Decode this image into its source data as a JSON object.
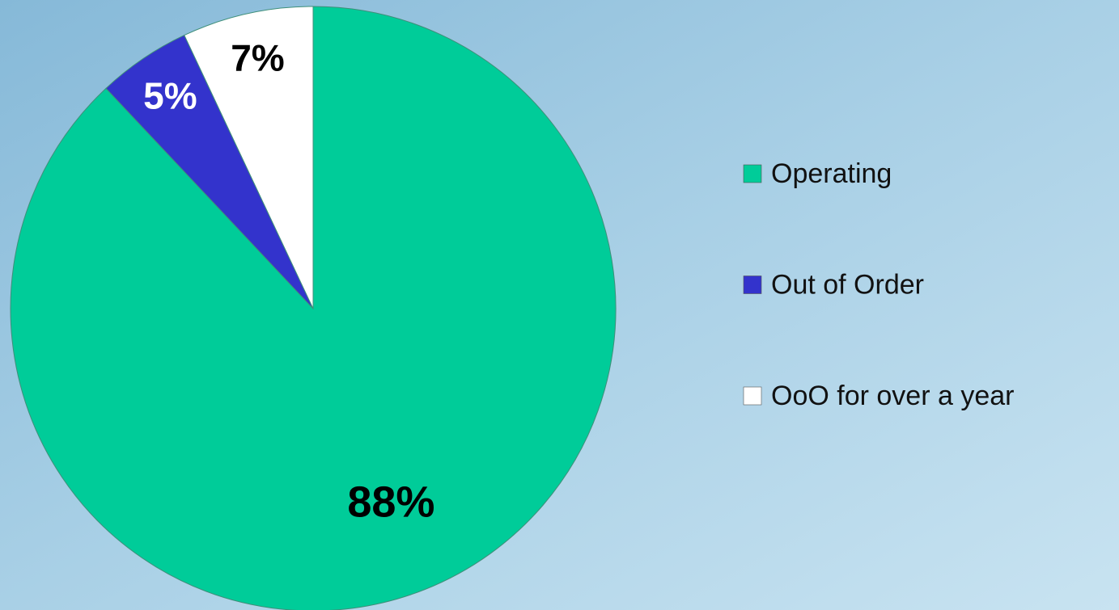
{
  "chart_data": {
    "type": "pie",
    "categories": [
      "Operating",
      "Out of Order",
      "OoO for over a year"
    ],
    "values": [
      88,
      5,
      7
    ],
    "value_labels": [
      "88%",
      "5%",
      "7%"
    ],
    "colors": [
      "#00cc99",
      "#3333cc",
      "#ffffff"
    ],
    "value_label_colors": [
      "#000000",
      "#ffffff",
      "#000000"
    ],
    "legend": "right"
  }
}
